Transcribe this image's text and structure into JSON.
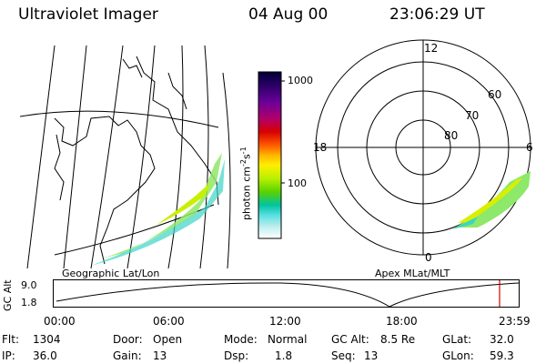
{
  "header": {
    "instrument": "Ultraviolet Imager",
    "date": "04 Aug 00",
    "time": "23:06:29 UT"
  },
  "geo_panel": {
    "label": "Geographic Lat/Lon"
  },
  "colorbar": {
    "label": "photon cm",
    "label_sup1": "-2",
    "label_mid": "s",
    "label_sup2": "-1",
    "tick_1000": "1000",
    "tick_100": "100",
    "colors": [
      "#000033",
      "#2a0066",
      "#6a0099",
      "#b0006a",
      "#d80000",
      "#ff5a00",
      "#ffb400",
      "#ffee00",
      "#b8f000",
      "#5ad200",
      "#00c3a0",
      "#57e0e0",
      "#bfeeee",
      "#ffffff"
    ]
  },
  "polar_panel": {
    "label": "Apex MLat/MLT",
    "mlt_12": "12",
    "mlt_18": "18",
    "mlt_6": "6",
    "mlt_0": "0",
    "lat_60": "60",
    "lat_70": "70",
    "lat_80": "80"
  },
  "timeline": {
    "ylabel": "GC Alt",
    "ytick_top": "9.0",
    "ytick_bottom": "1.8",
    "xticks": [
      "00:00",
      "06:00",
      "12:00",
      "18:00",
      "23:59"
    ],
    "marker_color": "#d40000"
  },
  "status": {
    "flt_label": "Flt:",
    "flt": "1304",
    "ip_label": "IP:",
    "ip": "36.0",
    "door_label": "Door:",
    "door": "Open",
    "gain_label": "Gain:",
    "gain": "13",
    "mode_label": "Mode:",
    "mode": "Normal",
    "dsp_label": "Dsp:",
    "dsp": "1.8",
    "gcalt_label": "GC Alt:",
    "gcalt": "8.5 Re",
    "seq_label": "Seq:",
    "seq": "13",
    "glat_label": "GLat:",
    "glat": "32.0",
    "glon_label": "GLon:",
    "glon": "59.3"
  }
}
